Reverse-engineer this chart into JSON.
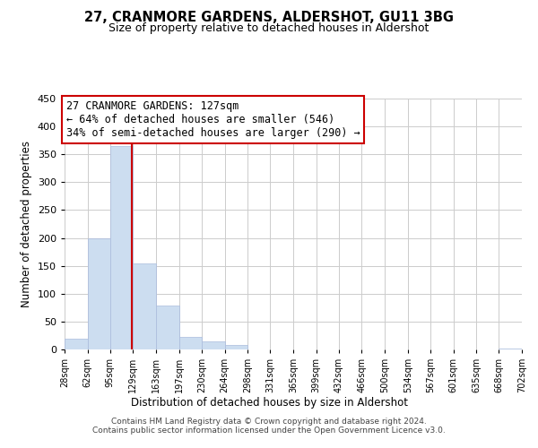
{
  "title": "27, CRANMORE GARDENS, ALDERSHOT, GU11 3BG",
  "subtitle": "Size of property relative to detached houses in Aldershot",
  "xlabel": "Distribution of detached houses by size in Aldershot",
  "ylabel": "Number of detached properties",
  "bar_edges": [
    28,
    62,
    95,
    129,
    163,
    197,
    230,
    264,
    298,
    331,
    365,
    399,
    432,
    466,
    500,
    534,
    567,
    601,
    635,
    668,
    702
  ],
  "bar_heights": [
    20,
    200,
    365,
    155,
    78,
    22,
    15,
    8,
    0,
    0,
    0,
    0,
    0,
    0,
    0,
    0,
    0,
    0,
    0,
    2
  ],
  "bar_color": "#ccddf0",
  "bar_edge_color": "#aabbdd",
  "vline_x": 127,
  "vline_color": "#cc0000",
  "ylim": [
    0,
    450
  ],
  "yticks": [
    0,
    50,
    100,
    150,
    200,
    250,
    300,
    350,
    400,
    450
  ],
  "xtick_labels": [
    "28sqm",
    "62sqm",
    "95sqm",
    "129sqm",
    "163sqm",
    "197sqm",
    "230sqm",
    "264sqm",
    "298sqm",
    "331sqm",
    "365sqm",
    "399sqm",
    "432sqm",
    "466sqm",
    "500sqm",
    "534sqm",
    "567sqm",
    "601sqm",
    "635sqm",
    "668sqm",
    "702sqm"
  ],
  "annotation_title": "27 CRANMORE GARDENS: 127sqm",
  "annotation_line1": "← 64% of detached houses are smaller (546)",
  "annotation_line2": "34% of semi-detached houses are larger (290) →",
  "annotation_box_color": "#ffffff",
  "annotation_border_color": "#cc0000",
  "footer_line1": "Contains HM Land Registry data © Crown copyright and database right 2024.",
  "footer_line2": "Contains public sector information licensed under the Open Government Licence v3.0.",
  "background_color": "#ffffff",
  "grid_color": "#cccccc"
}
